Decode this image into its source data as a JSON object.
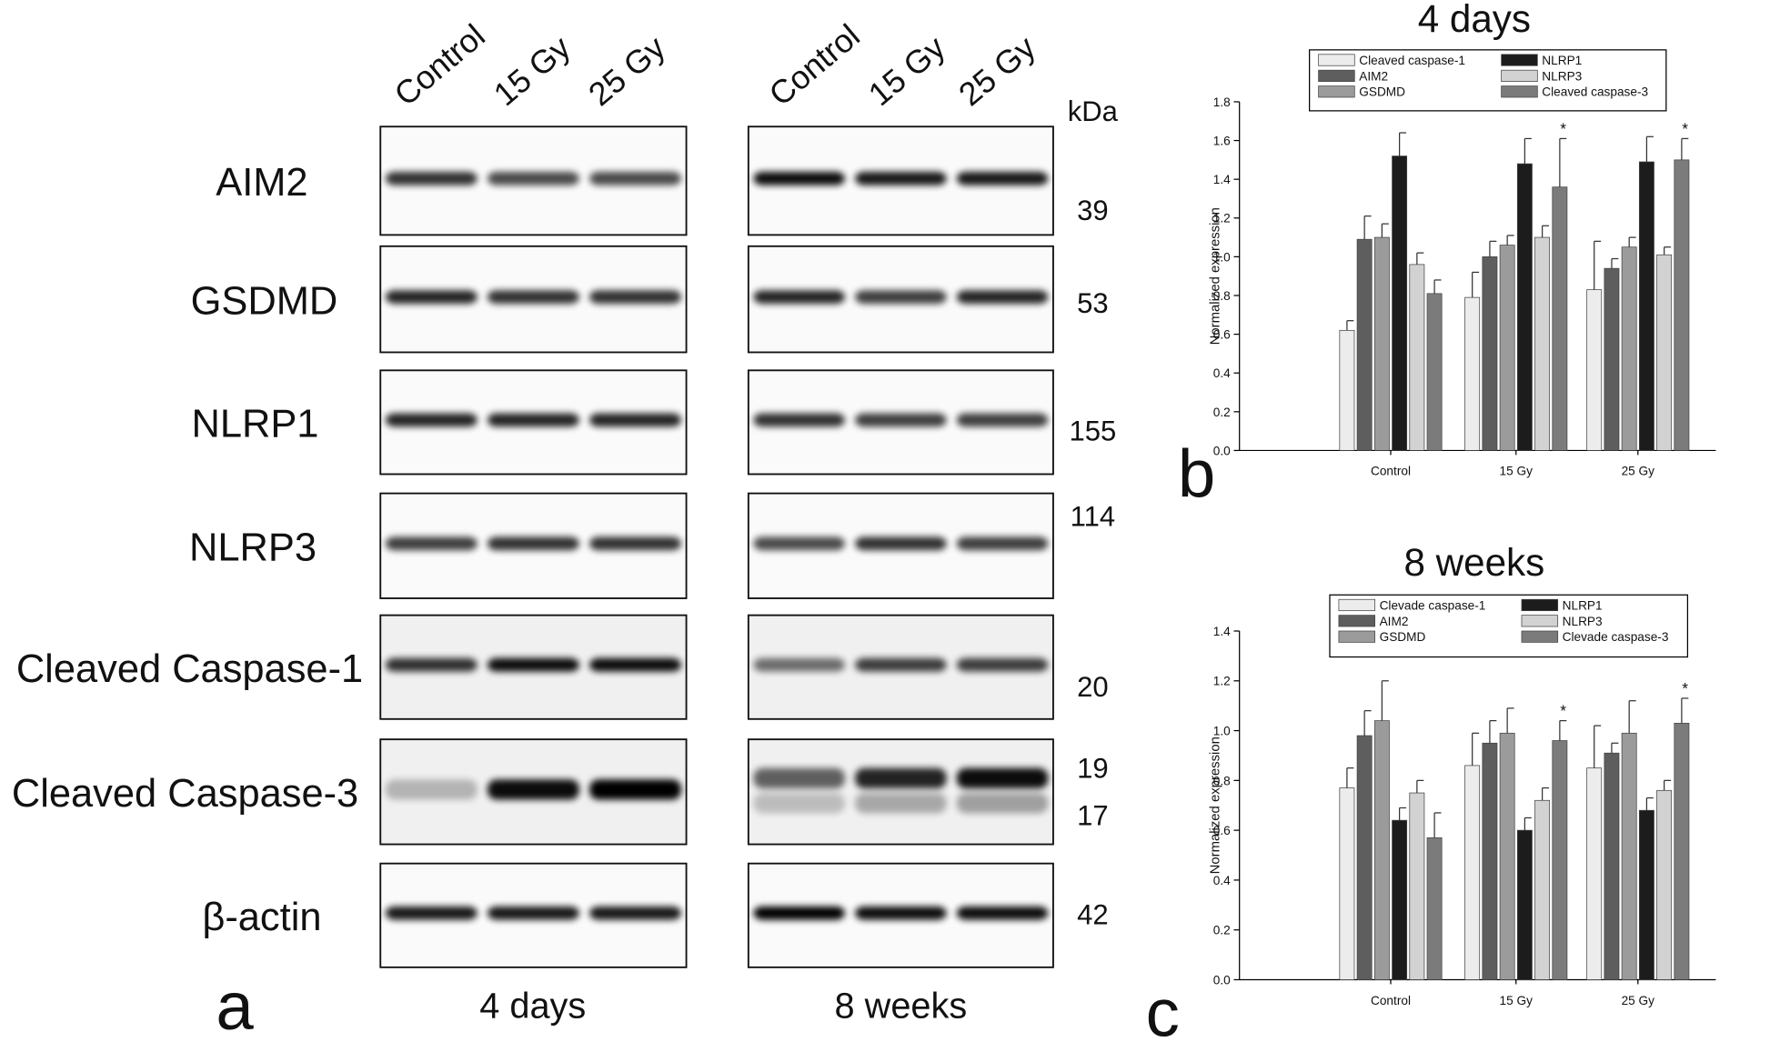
{
  "panels": [
    "a",
    "b",
    "c"
  ],
  "blots": {
    "lanes": [
      "Control",
      "15 Gy",
      "25 Gy"
    ],
    "unit": "kDa",
    "conditions": [
      "4 days",
      "8 weeks"
    ],
    "rows": [
      {
        "label": "AIM2",
        "kda": [
          39
        ]
      },
      {
        "label": "GSDMD",
        "kda": [
          53
        ]
      },
      {
        "label": "NLRP1",
        "kda": [
          155
        ]
      },
      {
        "label": "NLRP3",
        "kda": [
          114
        ]
      },
      {
        "label": "Cleaved Caspase-1",
        "kda": [
          20
        ]
      },
      {
        "label": "Cleaved Caspase-3",
        "kda": [
          19,
          17
        ]
      },
      {
        "label": "β-actin",
        "kda": [
          42
        ]
      }
    ]
  },
  "chart_data": [
    {
      "type": "bar",
      "title": "4 days",
      "y_label": "Normalized expression",
      "categories": [
        "Control",
        "15 Gy",
        "25 Gy"
      ],
      "ylim": [
        0,
        1.8
      ],
      "yticks": [
        {
          "value": 0,
          "label": "0.0"
        },
        0.2,
        0.4,
        0.6,
        0.8,
        {
          "value": 1,
          "label": "1.0"
        },
        1.2,
        1.4,
        1.6,
        1.8
      ],
      "series": [
        {
          "name": "Cleaved caspase-1",
          "color": "#ececec",
          "values": [
            0.62,
            0.79,
            0.83
          ],
          "errors": [
            0.05,
            0.13,
            0.25
          ]
        },
        {
          "name": "AIM2",
          "color": "#5e5e5e",
          "values": [
            1.09,
            1.0,
            0.94
          ],
          "errors": [
            0.12,
            0.08,
            0.05
          ]
        },
        {
          "name": "GSDMD",
          "color": "#9b9b9b",
          "values": [
            1.1,
            1.06,
            1.05
          ],
          "errors": [
            0.07,
            0.05,
            0.05
          ]
        },
        {
          "name": "NLRP1",
          "color": "#1c1c1c",
          "values": [
            1.52,
            1.48,
            1.49
          ],
          "errors": [
            0.12,
            0.13,
            0.13
          ]
        },
        {
          "name": "NLRP3",
          "color": "#d2d2d2",
          "values": [
            0.96,
            1.1,
            1.01
          ],
          "errors": [
            0.06,
            0.06,
            0.04
          ]
        },
        {
          "name": "Cleaved caspase-3",
          "color": "#7b7b7b",
          "values": [
            0.81,
            1.36,
            1.5
          ],
          "errors": [
            0.07,
            0.25,
            0.11
          ]
        }
      ],
      "annotations": [
        {
          "text": "*",
          "series": 5,
          "category": 1
        },
        {
          "text": "*",
          "series": 5,
          "category": 2
        }
      ]
    },
    {
      "type": "bar",
      "title": "8 weeks",
      "y_label": "Normalized expression",
      "categories": [
        "Control",
        "15 Gy",
        "25 Gy"
      ],
      "ylim": [
        0,
        1.4
      ],
      "yticks": [
        {
          "value": 0,
          "label": "0.0"
        },
        0.2,
        0.4,
        0.6,
        0.8,
        {
          "value": 1,
          "label": "1.0"
        },
        1.2,
        1.4
      ],
      "series": [
        {
          "name": "Clevade caspase-1",
          "color": "#ececec",
          "values": [
            0.77,
            0.86,
            0.85
          ],
          "errors": [
            0.08,
            0.13,
            0.17
          ]
        },
        {
          "name": "AIM2",
          "color": "#5e5e5e",
          "values": [
            0.98,
            0.95,
            0.91
          ],
          "errors": [
            0.1,
            0.09,
            0.04
          ]
        },
        {
          "name": "GSDMD",
          "color": "#9b9b9b",
          "values": [
            1.04,
            0.99,
            0.99
          ],
          "errors": [
            0.16,
            0.1,
            0.13
          ]
        },
        {
          "name": "NLRP1",
          "color": "#1c1c1c",
          "values": [
            0.64,
            0.6,
            0.68
          ],
          "errors": [
            0.05,
            0.05,
            0.05
          ]
        },
        {
          "name": "NLRP3",
          "color": "#d2d2d2",
          "values": [
            0.75,
            0.72,
            0.76
          ],
          "errors": [
            0.05,
            0.05,
            0.04
          ]
        },
        {
          "name": "Clevade caspase-3",
          "color": "#7b7b7b",
          "values": [
            0.57,
            0.96,
            1.03
          ],
          "errors": [
            0.1,
            0.08,
            0.1
          ]
        }
      ],
      "annotations": [
        {
          "text": "*",
          "series": 5,
          "category": 1
        },
        {
          "text": "*",
          "series": 5,
          "category": 2
        }
      ]
    }
  ]
}
